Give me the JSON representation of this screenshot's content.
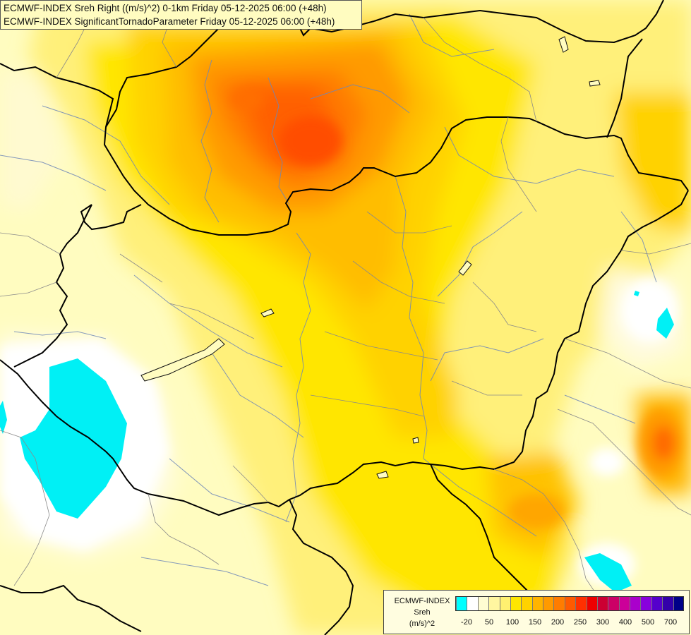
{
  "title": {
    "line1": "ECMWF-INDEX Sreh Right ((m/s)^2) 0-1km Friday 05-12-2025 06:00 (+48h)",
    "line2": "ECMWF-INDEX SignificantTornadoParameter Friday 05-12-2025 06:00 (+48h)"
  },
  "legend": {
    "source": "ECMWF-INDEX",
    "variable": "Sreh",
    "unit": "(m/s)^2",
    "colors": [
      "#00ffff",
      "#ffffff",
      "#fffcd2",
      "#fff6a0",
      "#fff070",
      "#ffe600",
      "#ffd200",
      "#ffb400",
      "#ff9a00",
      "#ff7c00",
      "#ff5a00",
      "#ff3000",
      "#ee0000",
      "#cc0033",
      "#cc0066",
      "#cc0099",
      "#aa00cc",
      "#8800dd",
      "#5500cc",
      "#3300aa",
      "#000088"
    ],
    "ticks": [
      "-20",
      "50",
      "100",
      "150",
      "200",
      "250",
      "300",
      "400",
      "500",
      "700"
    ]
  }
}
